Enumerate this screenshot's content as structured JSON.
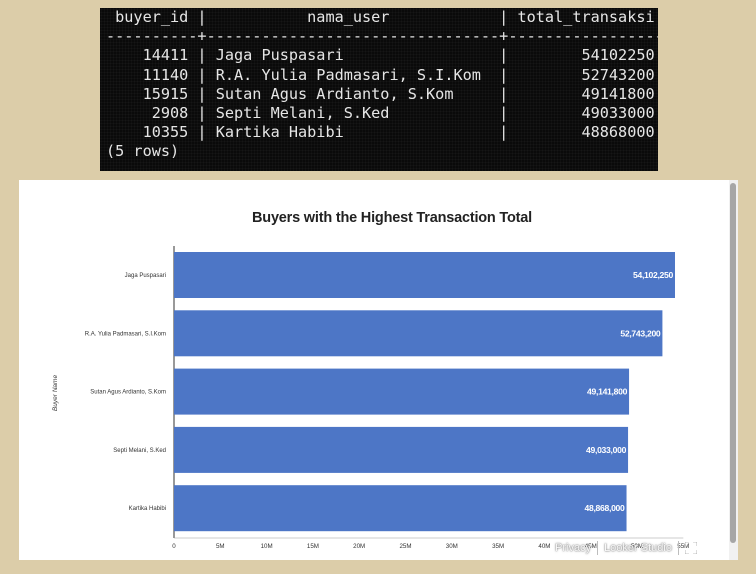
{
  "terminal": {
    "header": " buyer_id |           nama_user            | total_transaksi",
    "separator": "----------+--------------------------------+-----------------",
    "rows": [
      "    14411 | Jaga Puspasari                 |        54102250",
      "    11140 | R.A. Yulia Padmasari, S.I.Kom  |        52743200",
      "    15915 | Sutan Agus Ardianto, S.Kom     |        49141800",
      "     2908 | Septi Melani, S.Ked            |        49033000",
      "    10355 | Kartika Habibi                 |        48868000"
    ],
    "footer": "(5 rows)"
  },
  "chart_data": {
    "type": "bar",
    "orientation": "horizontal",
    "title": "Buyers with the Highest Transaction Total",
    "ylabel": "Buyer Name",
    "xlabel": "",
    "categories": [
      "Jaga Puspasari",
      "R.A. Yulia Padmasari, S.I.Kom",
      "Sutan Agus Ardianto, S.Kom",
      "Septi Melani, S.Ked",
      "Kartika Habibi"
    ],
    "values": [
      54102250,
      52743200,
      49141800,
      49033000,
      48868000
    ],
    "value_labels": [
      "54,102,250",
      "52,743,200",
      "49,141,800",
      "49,033,000",
      "48,868,000"
    ],
    "x_ticks": [
      "0",
      "5M",
      "10M",
      "15M",
      "20M",
      "25M",
      "30M",
      "35M",
      "40M",
      "45M",
      "50M",
      "55M"
    ],
    "xlim": [
      0,
      55000000
    ],
    "bar_color": "#4d76c6",
    "grid": false,
    "legend": "none"
  },
  "footer": {
    "privacy": "Privacy",
    "brand": "Looker Studio"
  }
}
